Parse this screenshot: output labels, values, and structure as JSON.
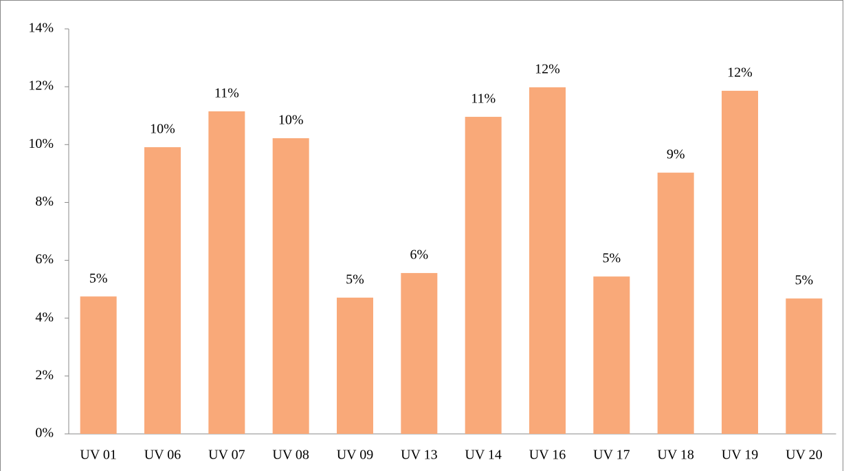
{
  "chart_data": {
    "type": "bar",
    "categories": [
      "UV 01",
      "UV 06",
      "UV 07",
      "UV 08",
      "UV 09",
      "UV 13",
      "UV 14",
      "UV 16",
      "UV 17",
      "UV 18",
      "UV 19",
      "UV 20"
    ],
    "values": [
      4.75,
      9.91,
      11.15,
      10.22,
      4.71,
      5.56,
      10.96,
      11.98,
      5.44,
      9.03,
      11.86,
      4.68
    ],
    "value_labels": [
      "5%",
      "10%",
      "11%",
      "10%",
      "5%",
      "6%",
      "11%",
      "12%",
      "5%",
      "9%",
      "12%",
      "5%"
    ],
    "color": "#f9a979",
    "ylim": [
      0,
      14
    ],
    "yticks": [
      {
        "value": 0,
        "label": "0%"
      },
      {
        "value": 2,
        "label": "2%"
      },
      {
        "value": 4,
        "label": "4%"
      },
      {
        "value": 6,
        "label": "6%"
      },
      {
        "value": 8,
        "label": "8%"
      },
      {
        "value": 10,
        "label": "10%"
      },
      {
        "value": 12,
        "label": "12%"
      },
      {
        "value": 14,
        "label": "14%"
      }
    ],
    "grid": false
  }
}
